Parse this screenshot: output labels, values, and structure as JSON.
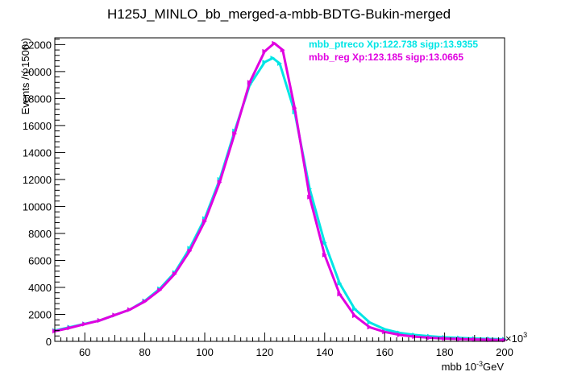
{
  "chart_data": {
    "type": "line",
    "title": "H125J_MINLO_bb_merged-a-mbb-BDTG-Bukin-merged",
    "xlabel": "mbb 10^-3GeV",
    "xlabel_main": "mbb 10",
    "xlabel_sup": "-3",
    "xlabel_unit": "GeV",
    "x_multiplier": "×10",
    "x_multiplier_sup": "3",
    "ylabel": "Events / ( 1500 )",
    "xlim": [
      50,
      200
    ],
    "ylim": [
      0,
      22500
    ],
    "x_ticks": [
      60,
      80,
      100,
      120,
      140,
      160,
      180,
      200
    ],
    "y_ticks": [
      0,
      2000,
      4000,
      6000,
      8000,
      10000,
      12000,
      14000,
      16000,
      18000,
      20000,
      22000
    ],
    "grid": false,
    "legend_position": "top-right",
    "colors": {
      "mbb_ptreco": "#00e5e5",
      "mbb_reg": "#e000e0",
      "axis": "#000000"
    },
    "series": [
      {
        "name": "mbb_ptreco Xp:122.738 sigp:13.9355",
        "color": "#00e5e5",
        "x": [
          50,
          55,
          60,
          65,
          70,
          75,
          80,
          85,
          90,
          95,
          100,
          105,
          110,
          115,
          120,
          122.7,
          125,
          130,
          135,
          140,
          145,
          150,
          155,
          160,
          165,
          170,
          175,
          180,
          185,
          190,
          195,
          200
        ],
        "values": [
          800,
          1050,
          1300,
          1550,
          1950,
          2350,
          3000,
          3900,
          5100,
          6900,
          9100,
          12000,
          15600,
          19000,
          20700,
          21000,
          20600,
          17000,
          11300,
          7300,
          4300,
          2400,
          1400,
          900,
          630,
          480,
          380,
          300,
          250,
          210,
          180,
          160
        ]
      },
      {
        "name": "mbb_reg Xp:123.185 sigp:13.0665",
        "color": "#e000e0",
        "x": [
          50,
          55,
          60,
          65,
          70,
          75,
          80,
          85,
          90,
          95,
          100,
          105,
          110,
          115,
          120,
          123.2,
          126,
          130,
          135,
          140,
          145,
          150,
          155,
          160,
          165,
          170,
          175,
          180,
          185,
          190,
          195,
          200
        ],
        "values": [
          750,
          1000,
          1280,
          1550,
          1950,
          2350,
          2950,
          3800,
          5000,
          6700,
          8900,
          11800,
          15400,
          19200,
          21500,
          22100,
          21600,
          17300,
          10700,
          6400,
          3500,
          1900,
          1050,
          700,
          480,
          350,
          270,
          210,
          170,
          140,
          120,
          100
        ]
      }
    ]
  }
}
